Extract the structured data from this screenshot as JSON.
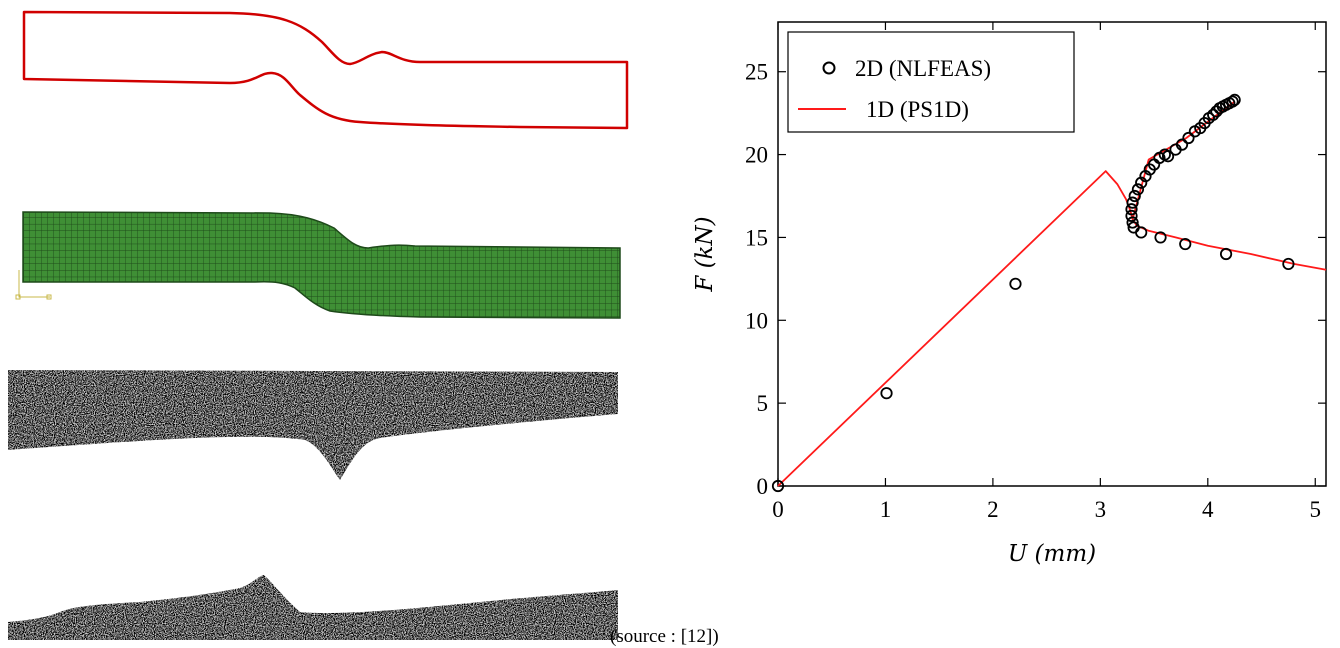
{
  "caption": "(source : [12])",
  "colors": {
    "outline": "#d00000",
    "mesh_fill": "#3f8f35",
    "mesh_line": "#1e4a1a",
    "micrograph_dark": "#000000",
    "fit_line": "#ff1a1a",
    "markers": "#000000"
  },
  "panels": [
    {
      "name": "deformed-outline",
      "kind": "red outline of sheared specimen"
    },
    {
      "name": "finite-element-mesh",
      "kind": "green quadrilateral mesh"
    },
    {
      "name": "micrograph",
      "kind": "black and white photograph of sheared specimen"
    }
  ],
  "chart_data": {
    "type": "scatter",
    "xlabel": "U (mm)",
    "ylabel": "F (kN)",
    "xlim": [
      0,
      5.1
    ],
    "ylim": [
      0,
      28
    ],
    "x_ticks": [
      0,
      1,
      2,
      3,
      4,
      5
    ],
    "y_ticks": [
      0,
      5,
      10,
      15,
      20,
      25
    ],
    "grid": false,
    "legend_position": "top-left",
    "series": [
      {
        "name": "2D (NLFEAS)",
        "style": "open-circle markers",
        "x": [
          0,
          1.01,
          2.21,
          3.3,
          3.29,
          3.29,
          3.3,
          3.32,
          3.35,
          3.38,
          3.42,
          3.46,
          3.5,
          3.55,
          3.6,
          3.63,
          3.7,
          3.76,
          3.82,
          3.88,
          3.93,
          3.97,
          4.01,
          4.05,
          4.08,
          4.11,
          4.14,
          4.17,
          4.2,
          4.23,
          4.25,
          3.31,
          3.38,
          3.56,
          3.79,
          4.17,
          4.75
        ],
        "y": [
          0,
          5.6,
          12.2,
          15.9,
          16.3,
          16.7,
          17.1,
          17.5,
          17.9,
          18.3,
          18.7,
          19.1,
          19.4,
          19.8,
          20.0,
          19.9,
          20.3,
          20.6,
          21.0,
          21.4,
          21.6,
          21.9,
          22.2,
          22.4,
          22.6,
          22.8,
          22.9,
          23.0,
          23.1,
          23.2,
          23.3,
          15.6,
          15.3,
          15.0,
          14.6,
          14.0,
          13.4
        ]
      },
      {
        "name": "1D (PS1D)",
        "style": "solid line",
        "x": [
          0,
          3.05,
          3.16,
          3.24,
          3.28,
          3.3,
          3.34,
          3.45,
          3.7,
          4.0,
          4.4,
          4.8,
          5.1,
          3.45,
          3.8,
          4.25
        ],
        "y": [
          0,
          19.0,
          18.2,
          17.3,
          16.6,
          16.1,
          15.7,
          15.4,
          15.0,
          14.5,
          14.0,
          13.4,
          13.05,
          19.7,
          21.0,
          23.2
        ]
      }
    ]
  }
}
